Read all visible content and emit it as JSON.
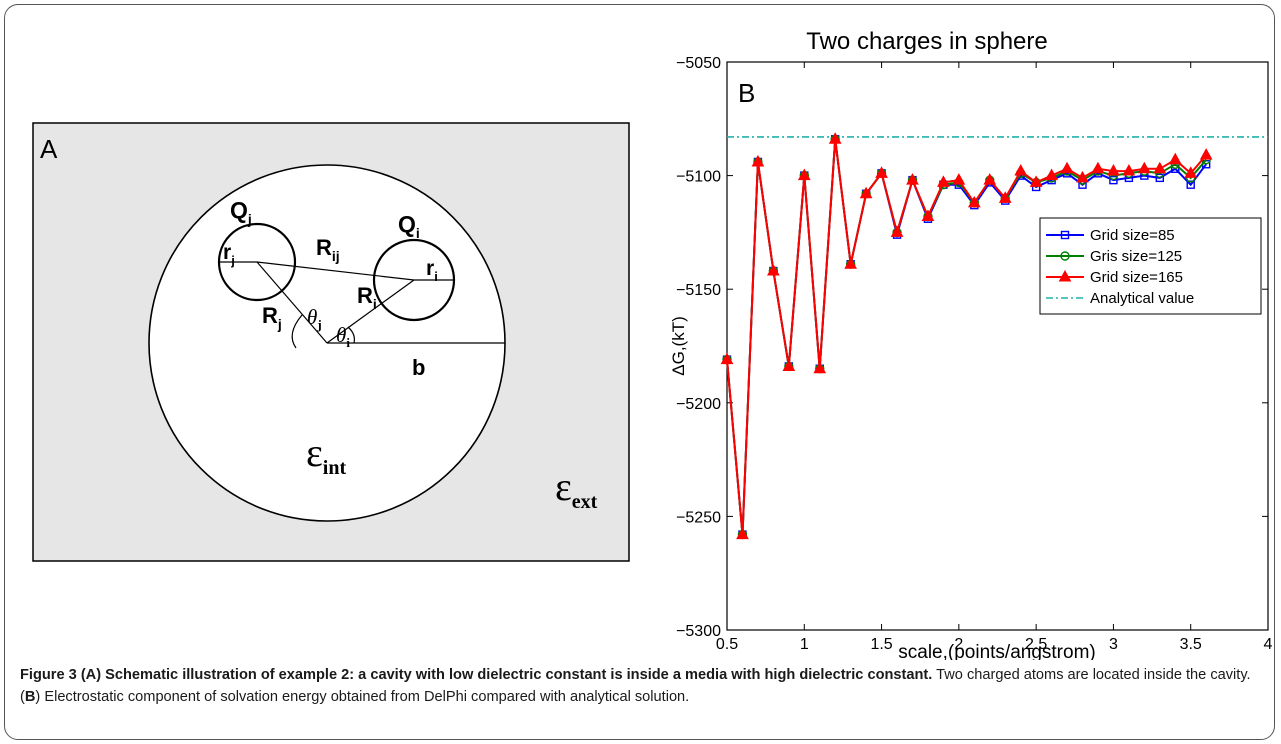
{
  "panel_a": {
    "label": "A",
    "q_j": "Q",
    "q_j_sub": "j",
    "q_i": "Q",
    "q_i_sub": "i",
    "r_j": "r",
    "r_j_sub": "j",
    "r_i": "r",
    "r_i_sub": "i",
    "R_ij": "R",
    "R_ij_sub": "ij",
    "R_j": "R",
    "R_j_sub": "j",
    "R_i": "R",
    "R_i_sub": "i",
    "theta_j": "θ",
    "theta_j_sub": "j",
    "theta_i": "θ",
    "theta_i_sub": "i",
    "b": "b",
    "eps_int": "ε",
    "eps_int_sub": "int",
    "eps_ext": "ε",
    "eps_ext_sub": "ext",
    "colors": {
      "background": "#e6e6e6",
      "cavity": "#ffffff",
      "lines": "#000000"
    }
  },
  "chart_data": {
    "type": "line",
    "title": "Two charges in sphere",
    "panel_label": "B",
    "xlabel": "scale,(points/angstrom)",
    "ylabel": "ΔG,(kT)",
    "xlim": [
      0.5,
      4
    ],
    "ylim": [
      -5300,
      -5050
    ],
    "xticks": [
      0.5,
      1,
      1.5,
      2,
      2.5,
      3,
      3.5,
      4
    ],
    "yticks": [
      -5300,
      -5250,
      -5200,
      -5150,
      -5100,
      -5050
    ],
    "xtick_labels": [
      "0.5",
      "1",
      "1.5",
      "2",
      "2.5",
      "3",
      "3.5",
      "4"
    ],
    "ytick_labels": [
      "−5300",
      "−5250",
      "−5200",
      "−5150",
      "−5100",
      "−5050"
    ],
    "legend_placement": "right",
    "grid": false,
    "x": [
      0.5,
      0.6,
      0.7,
      0.8,
      0.9,
      1.0,
      1.1,
      1.2,
      1.3,
      1.4,
      1.5,
      1.6,
      1.7,
      1.8,
      1.9,
      2.0,
      2.1,
      2.2,
      2.3,
      2.4,
      2.5,
      2.6,
      2.7,
      2.8,
      2.9,
      3.0,
      3.1,
      3.2,
      3.3,
      3.4,
      3.5,
      3.6
    ],
    "series": [
      {
        "name": "Grid size=85",
        "color": "#0000ff",
        "marker": "square",
        "values": [
          -5181,
          -5258,
          -5094,
          -5142,
          -5184,
          -5100,
          -5185,
          -5084,
          -5139,
          -5108,
          -5099,
          -5126,
          -5102,
          -5119,
          -5104,
          -5104,
          -5113,
          -5103,
          -5111,
          -5100,
          -5105,
          -5102,
          -5099,
          -5104,
          -5099,
          -5102,
          -5101,
          -5100,
          -5101,
          -5097,
          -5104,
          -5095
        ]
      },
      {
        "name": "Gris size=125",
        "color": "#008000",
        "marker": "circle",
        "values": [
          -5181,
          -5258,
          -5094,
          -5142,
          -5184,
          -5100,
          -5185,
          -5084,
          -5139,
          -5108,
          -5099,
          -5125,
          -5102,
          -5118,
          -5104,
          -5103,
          -5112,
          -5102,
          -5110,
          -5099,
          -5103,
          -5101,
          -5098,
          -5102,
          -5098,
          -5100,
          -5099,
          -5098,
          -5099,
          -5095,
          -5101,
          -5093
        ]
      },
      {
        "name": "Grid size=165",
        "color": "#ff0000",
        "marker": "triangle",
        "values": [
          -5181,
          -5258,
          -5094,
          -5142,
          -5184,
          -5100,
          -5185,
          -5084,
          -5139,
          -5108,
          -5099,
          -5125,
          -5102,
          -5118,
          -5103,
          -5102,
          -5112,
          -5102,
          -5110,
          -5098,
          -5103,
          -5100,
          -5097,
          -5101,
          -5097,
          -5098,
          -5098,
          -5097,
          -5097,
          -5093,
          -5099,
          -5091
        ]
      }
    ],
    "reference": {
      "name": "Analytical value",
      "color": "#20b2aa",
      "value": -5083
    }
  },
  "caption": {
    "figure_label": "Figure 3",
    "bold_part": " (A) Schematic illustration of example 2: a cavity with low dielectric constant is inside a media with high dielectric constant.",
    "text_1": " Two charged atoms are located inside the cavity. (",
    "b_letter": "B",
    "text_2": ") Electrostatic component of solvation energy obtained from DelPhi compared with analytical solution."
  }
}
